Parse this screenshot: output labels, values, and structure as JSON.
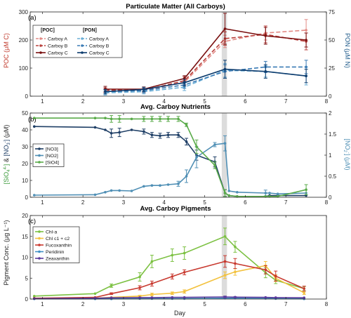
{
  "figure": {
    "xlabel": "Day",
    "xlim": [
      0.7,
      8
    ],
    "xticks": [
      1,
      2,
      3,
      4,
      5,
      6,
      7,
      8
    ],
    "shade_band": [
      5.42,
      5.55
    ]
  },
  "chart_data": [
    {
      "panel_id": "a",
      "type": "line",
      "title": "Particulate Matter (All Carboys)",
      "panel_label": "(a)",
      "ylabel_left": "POC (μM C)",
      "ylabel_right": "PON (μM N)",
      "ylim_left": [
        0,
        300
      ],
      "yticks_left": [
        0,
        100,
        200,
        300
      ],
      "ylim_right": [
        0,
        75
      ],
      "yticks_right": [
        0,
        25,
        50,
        75
      ],
      "legend_headers": [
        "[POC]",
        "[PON]"
      ],
      "x": [
        2.55,
        3.5,
        4.5,
        5.5,
        6.5,
        7.5
      ],
      "series": [
        {
          "name": "Carboy A",
          "group": "POC",
          "axis": "left",
          "color": "#e28a85",
          "dash": "6,3",
          "values": [
            20,
            20,
            50,
            195,
            225,
            235
          ],
          "err": [
            8,
            8,
            12,
            22,
            25,
            38
          ]
        },
        {
          "name": "Carboy B",
          "group": "POC",
          "axis": "left",
          "color": "#b8403c",
          "dash": "6,3",
          "values": [
            22,
            21,
            55,
            205,
            220,
            195
          ],
          "err": [
            8,
            8,
            14,
            24,
            30,
            30
          ]
        },
        {
          "name": "Carboy C",
          "group": "POC",
          "axis": "left",
          "color": "#7a1010",
          "dash": "",
          "values": [
            25,
            25,
            63,
            240,
            215,
            200
          ],
          "err": [
            10,
            8,
            10,
            55,
            30,
            25
          ]
        },
        {
          "name": "Carboy A",
          "group": "PON",
          "axis": "right",
          "color": "#6aaed6",
          "dash": "6,3",
          "values": [
            3,
            4,
            8,
            23,
            22,
            18
          ],
          "err": [
            2,
            2,
            3,
            6,
            5,
            8
          ]
        },
        {
          "name": "Carboy B",
          "group": "PON",
          "axis": "right",
          "color": "#3a7bb5",
          "dash": "6,3",
          "values": [
            4,
            5,
            10,
            22,
            26,
            26
          ],
          "err": [
            2,
            2,
            3,
            6,
            5,
            6
          ]
        },
        {
          "name": "Carboy C",
          "group": "PON",
          "axis": "right",
          "color": "#0d3c6e",
          "dash": "",
          "values": [
            4,
            6,
            12,
            24,
            22,
            18
          ],
          "err": [
            2,
            2,
            3,
            8,
            6,
            6
          ]
        }
      ]
    },
    {
      "panel_id": "b",
      "type": "line",
      "title": "Avg. Carboy Nutrients",
      "panel_label": "(b)",
      "ylabel_left": "[SiO4] & [NO3] (μM)",
      "ylabel_right": "[NO2] (μM)",
      "ylim_left": [
        0,
        50
      ],
      "yticks_left": [
        0,
        10,
        20,
        30,
        40,
        50
      ],
      "ylim_right": [
        0,
        2
      ],
      "yticks_right": [
        0,
        0.5,
        1,
        1.5,
        2
      ],
      "series": [
        {
          "name": "[NO3]",
          "axis": "left",
          "color": "#1f3f66",
          "x": [
            0.8,
            2.3,
            2.55,
            2.7,
            2.9,
            3.2,
            3.5,
            3.7,
            3.9,
            4.1,
            4.35,
            4.55,
            4.8,
            5.25,
            5.5,
            5.6,
            5.8,
            6.5,
            6.6,
            6.8,
            7.5
          ],
          "values": [
            42,
            41.5,
            40,
            38,
            38.5,
            40,
            39,
            37,
            36.5,
            37,
            37,
            33,
            25,
            21,
            2.5,
            1,
            0.5,
            0.5,
            1,
            1,
            1
          ],
          "err": [
            0,
            0,
            0,
            2.5,
            2.5,
            0,
            1.5,
            1.5,
            1.5,
            1.5,
            1.5,
            2,
            3,
            3,
            2,
            0,
            0,
            0,
            0,
            0,
            0
          ]
        },
        {
          "name": "[NO2]",
          "axis": "right",
          "color": "#4f8fb5",
          "x": [
            0.8,
            2.3,
            2.55,
            2.7,
            2.9,
            3.2,
            3.5,
            3.7,
            3.9,
            4.1,
            4.35,
            4.55,
            4.8,
            5.25,
            5.5,
            5.6,
            5.8,
            6.5,
            6.6,
            6.8,
            7.5
          ],
          "values": [
            0.05,
            0.06,
            0.12,
            0.16,
            0.16,
            0.15,
            0.26,
            0.28,
            0.28,
            0.3,
            0.32,
            0.5,
            0.95,
            1.25,
            1.28,
            0.15,
            0.12,
            0.1,
            0.1,
            0.08,
            0.1
          ],
          "err": [
            0,
            0,
            0,
            0,
            0,
            0,
            0,
            0,
            0,
            0,
            0.06,
            0.15,
            0.25,
            0.05,
            0.18,
            0,
            0,
            0.07,
            0,
            0,
            0
          ]
        },
        {
          "name": "[SiO4]",
          "axis": "left",
          "color": "#5aab4a",
          "x": [
            0.8,
            2.3,
            2.55,
            2.7,
            2.9,
            3.2,
            3.5,
            3.7,
            3.9,
            4.1,
            4.35,
            4.55,
            4.8,
            5.25,
            5.5,
            5.6,
            5.8,
            6.5,
            6.6,
            6.8,
            7.5
          ],
          "values": [
            47,
            47,
            47,
            46.5,
            46.5,
            46.5,
            46.5,
            46.5,
            46.5,
            46.5,
            46.5,
            43,
            30,
            19,
            2.5,
            1,
            0.5,
            0.5,
            0.5,
            0.5,
            4.5
          ],
          "err": [
            0,
            0,
            0,
            2,
            2,
            0,
            1.5,
            1.5,
            1.5,
            1.5,
            1.5,
            1,
            4,
            2,
            2,
            0,
            0,
            0,
            0,
            0,
            3
          ]
        }
      ]
    },
    {
      "panel_id": "c",
      "type": "line",
      "title": "Avg. Carboy Pigments",
      "panel_label": "(c)",
      "ylabel_left": "Pigment Conc. (μg L⁻¹)",
      "ylim_left": [
        0,
        20
      ],
      "yticks_left": [
        0,
        5,
        10,
        15,
        20
      ],
      "series": [
        {
          "name": "Chl-a",
          "color": "#7cc142",
          "x": [
            0.8,
            2.3,
            2.7,
            3.4,
            3.7,
            4.2,
            4.5,
            5.5,
            5.75,
            6.5,
            6.75,
            7.45
          ],
          "values": [
            0.7,
            1.3,
            3.2,
            5.3,
            9,
            10.5,
            11,
            15,
            12.5,
            6.3,
            4.5,
            2.5
          ],
          "err": [
            0,
            0,
            0.4,
            1,
            1.5,
            1.5,
            1.5,
            2,
            1.3,
            1.2,
            0.8,
            0.5
          ]
        },
        {
          "name": "Chl c1 + c2",
          "color": "#f3c23f",
          "x": [
            0.8,
            2.3,
            2.7,
            3.4,
            3.7,
            4.2,
            4.5,
            5.5,
            5.75,
            6.5,
            6.75,
            7.45
          ],
          "values": [
            0.15,
            0.2,
            0.4,
            0.7,
            1.1,
            1.4,
            1.8,
            5.7,
            6.5,
            8,
            5,
            1.5
          ],
          "err": [
            0,
            0,
            0,
            0.2,
            0.3,
            0.3,
            0.4,
            0.8,
            0.8,
            1,
            0.8,
            0.4
          ]
        },
        {
          "name": "Fucoxanthin",
          "color": "#c8392f",
          "x": [
            0.8,
            2.3,
            2.7,
            3.4,
            3.7,
            4.2,
            4.5,
            5.5,
            5.75,
            6.5,
            6.75,
            7.45
          ],
          "values": [
            0.2,
            0.4,
            1.3,
            2.7,
            3.7,
            5.4,
            6.4,
            9,
            8.5,
            7,
            5.5,
            2.5
          ],
          "err": [
            0,
            0,
            0.2,
            0.5,
            0.6,
            0.6,
            0.6,
            1.4,
            1.2,
            1,
            1.2,
            0.6
          ]
        },
        {
          "name": "Peridinin",
          "color": "#3f8fc4",
          "x": [
            0.8,
            2.3,
            2.7,
            3.4,
            3.7,
            4.2,
            4.5,
            5.5,
            5.75,
            6.5,
            6.75,
            7.45
          ],
          "values": [
            0.05,
            0.05,
            0.05,
            0.1,
            0.1,
            0.1,
            0.1,
            0.2,
            0.2,
            0.15,
            0.1,
            0.05
          ],
          "err": [
            0,
            0,
            0,
            0,
            0,
            0,
            0,
            0,
            0,
            0,
            0,
            0
          ]
        },
        {
          "name": "Zeaxanthin",
          "color": "#5b3a9c",
          "x": [
            0.8,
            2.3,
            2.7,
            3.4,
            3.7,
            4.2,
            4.5,
            5.5,
            5.75,
            6.5,
            6.75,
            7.45
          ],
          "values": [
            0.1,
            0.2,
            0.3,
            0.35,
            0.35,
            0.4,
            0.4,
            0.5,
            0.45,
            0.4,
            0.35,
            0.3
          ],
          "err": [
            0,
            0,
            0,
            0,
            0,
            0,
            0,
            0.2,
            0.1,
            0,
            0,
            0
          ]
        }
      ]
    }
  ]
}
